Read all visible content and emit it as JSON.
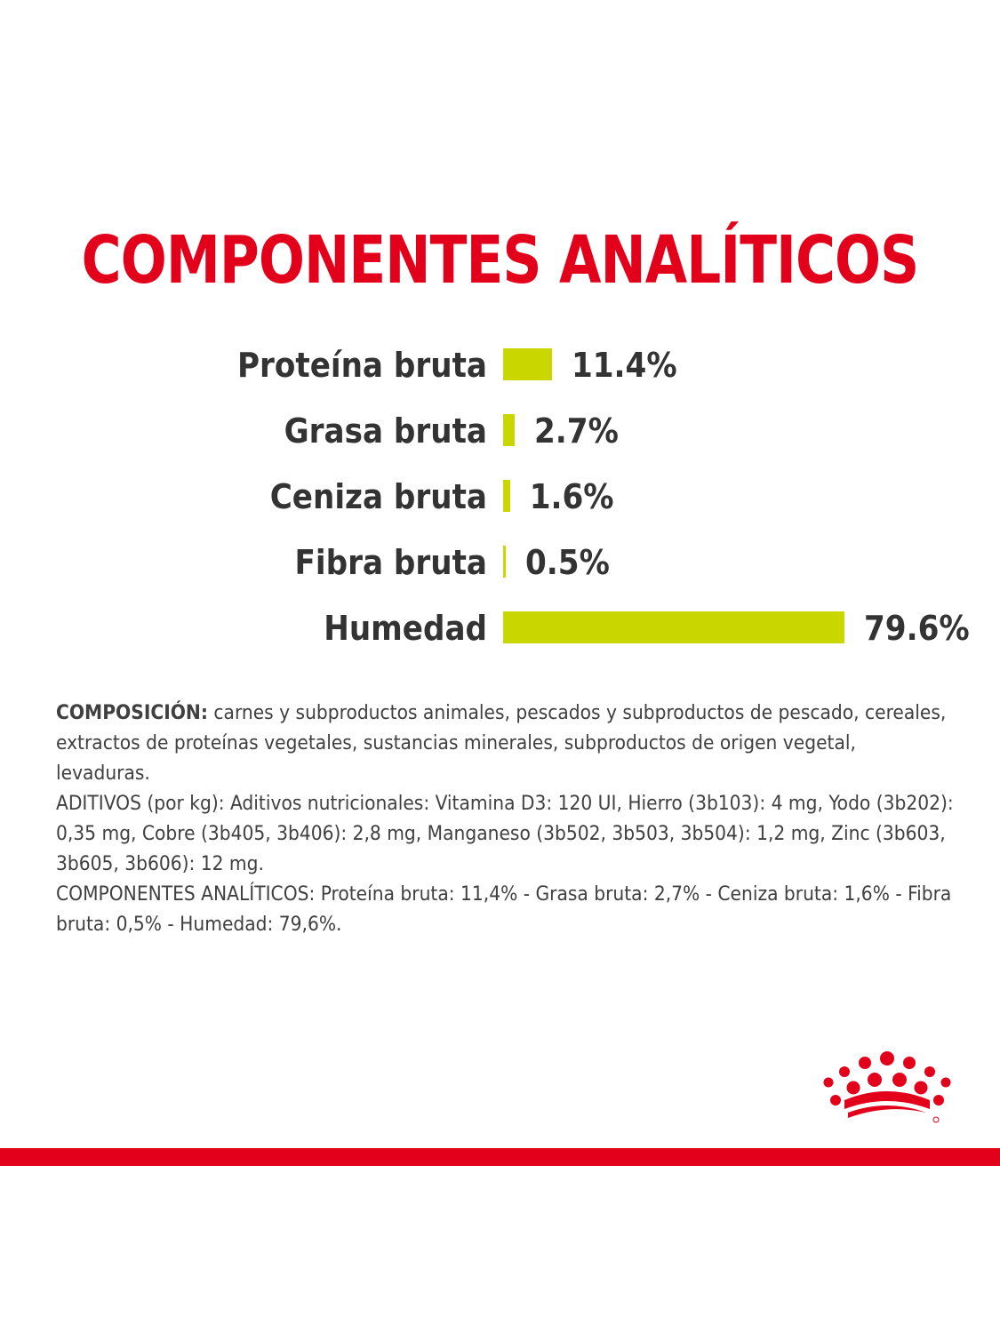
{
  "title": "COMPONENTES ANALÍTICOS",
  "colors": {
    "brand_red": "#e2001a",
    "bar": "#c9d600",
    "text": "#333333"
  },
  "chart_data": {
    "type": "bar",
    "orientation": "horizontal",
    "title": "COMPONENTES ANALÍTICOS",
    "categories": [
      "Proteína bruta",
      "Grasa bruta",
      "Ceniza bruta",
      "Fibra bruta",
      "Humedad"
    ],
    "values": [
      11.4,
      2.7,
      1.6,
      0.5,
      79.6
    ],
    "value_labels": [
      "11.4%",
      "2.7%",
      "1.6%",
      "0.5%",
      "79.6%"
    ],
    "unit": "%",
    "xlim": [
      0,
      100
    ],
    "grid": false,
    "legend": "none"
  },
  "composition": {
    "lead": "COMPOSICIÓN:",
    "text": " carnes y subproductos animales, pescados y subproductos de pescado, cereales, extractos de proteínas vegetales, sustancias minerales, subproductos de origen vegetal, levaduras.",
    "additives": "ADITIVOS (por kg): Aditivos nutricionales: Vitamina D3: 120 UI, Hierro (3b103): 4 mg, Yodo (3b202): 0,35 mg, Cobre (3b405, 3b406): 2,8 mg, Manganeso (3b502, 3b503, 3b504): 1,2 mg, Zinc (3b603, 3b605, 3b606): 12 mg.",
    "analytics": "COMPONENTES ANALÍTICOS: Proteína bruta: 11,4% - Grasa bruta: 2,7% - Ceniza bruta: 1,6% - Fibra bruta: 0,5% - Humedad: 79,6%."
  },
  "logo": {
    "icon": "royal-canin-crown-icon"
  }
}
